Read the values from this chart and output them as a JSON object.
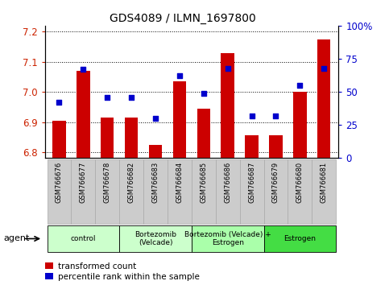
{
  "title": "GDS4089 / ILMN_1697800",
  "samples": [
    "GSM766676",
    "GSM766677",
    "GSM766678",
    "GSM766682",
    "GSM766683",
    "GSM766684",
    "GSM766685",
    "GSM766686",
    "GSM766687",
    "GSM766679",
    "GSM766680",
    "GSM766681"
  ],
  "red_values": [
    6.905,
    7.07,
    6.915,
    6.915,
    6.825,
    7.035,
    6.945,
    7.13,
    6.855,
    6.855,
    7.0,
    7.175
  ],
  "blue_percentiles": [
    42,
    67,
    46,
    46,
    30,
    62,
    49,
    68,
    32,
    32,
    55,
    68
  ],
  "ylim_left": [
    6.78,
    7.22
  ],
  "ylim_right": [
    0,
    100
  ],
  "yticks_left": [
    6.8,
    6.9,
    7.0,
    7.1,
    7.2
  ],
  "yticks_right": [
    0,
    25,
    50,
    75,
    100
  ],
  "ytick_labels_right": [
    "0",
    "25",
    "50",
    "75",
    "100%"
  ],
  "group_data": [
    {
      "start": 0,
      "end": 2,
      "label": "control",
      "color": "#ccffcc"
    },
    {
      "start": 3,
      "end": 5,
      "label": "Bortezomib\n(Velcade)",
      "color": "#ccffcc"
    },
    {
      "start": 6,
      "end": 8,
      "label": "Bortezomib (Velcade) +\nEstrogen",
      "color": "#aaffaa"
    },
    {
      "start": 9,
      "end": 11,
      "label": "Estrogen",
      "color": "#44dd44"
    }
  ],
  "bar_color": "#cc0000",
  "dot_color": "#0000cc",
  "base_value": 6.78,
  "bar_width": 0.55,
  "left_tick_color": "#cc2200",
  "right_tick_color": "#0000cc",
  "legend_items": [
    "transformed count",
    "percentile rank within the sample"
  ],
  "label_bg": "#cccccc",
  "label_edge": "#aaaaaa"
}
